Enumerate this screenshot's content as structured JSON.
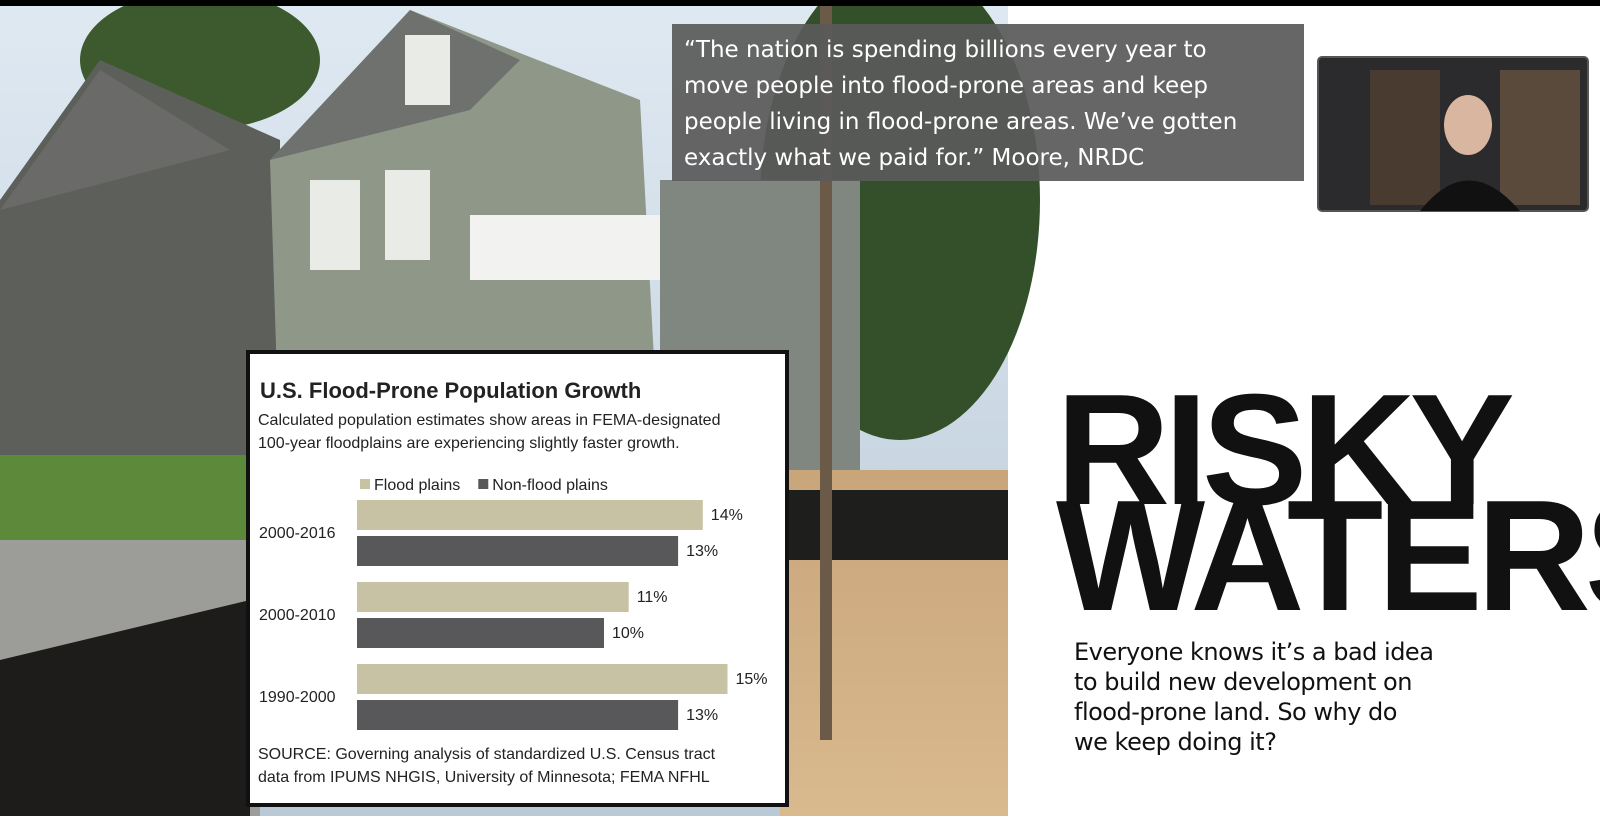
{
  "quote": [
    "“The nation is spending billions every year to",
    "move people into flood-prone areas and keep",
    "people living in flood-prone areas. We’ve gotten",
    "exactly what we paid for.” Moore, NRDC"
  ],
  "headline": [
    "RISKY",
    "WATERS"
  ],
  "deck": [
    "Everyone knows it’s a bad idea",
    "to build new development  on",
    "flood-prone land. So why do",
    "we keep doing it?"
  ],
  "chart_data": {
    "type": "bar",
    "orientation": "horizontal",
    "title": "U.S. Flood-Prone Population Growth",
    "subtitle": [
      "Calculated population estimates show areas in FEMA-designated",
      "100-year floodplains are experiencing slightly faster growth."
    ],
    "categories": [
      "2000-2016",
      "2000-2010",
      "1990-2000"
    ],
    "series": [
      {
        "name": "Flood plains",
        "color": "#c8c2a4",
        "values": [
          14,
          11,
          15
        ],
        "value_labels": [
          "14%",
          "11%",
          "15%"
        ]
      },
      {
        "name": "Non-flood plains",
        "color": "#58585a",
        "values": [
          13,
          10,
          13
        ],
        "value_labels": [
          "13%",
          "10%",
          "13%"
        ]
      }
    ],
    "source": [
      "SOURCE: Governing analysis of standardized U.S. Census tract",
      "data from IPUMS NHGIS, University of Minnesota; FEMA NFHL"
    ]
  }
}
